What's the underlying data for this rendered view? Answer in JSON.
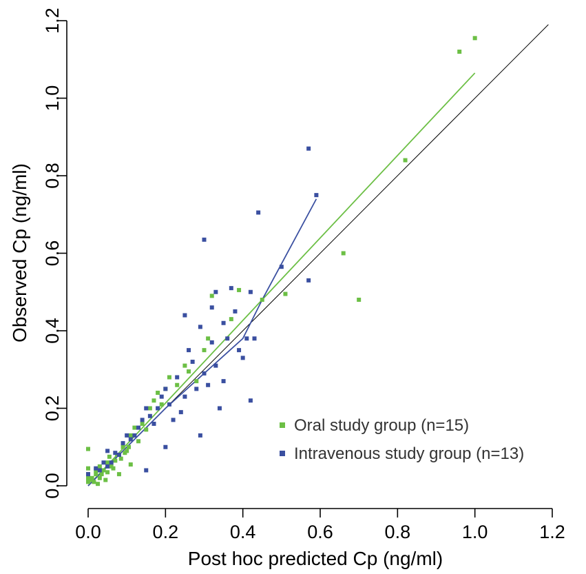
{
  "chart_data": {
    "type": "scatter",
    "xlabel": "Post hoc predicted Cp (ng/ml)",
    "ylabel": "Observed Cp (ng/ml)",
    "xlim": [
      0.0,
      1.2
    ],
    "ylim": [
      0.0,
      1.2
    ],
    "x_ticks": [
      "0.0",
      "0.2",
      "0.4",
      "0.6",
      "0.8",
      "1.0",
      "1.2"
    ],
    "y_ticks": [
      "0.0",
      "0.2",
      "0.4",
      "0.6",
      "0.8",
      "1.0",
      "1.2"
    ],
    "grid": false,
    "legend_position": "bottom-right",
    "identity_line": {
      "x": [
        0.0,
        1.19
      ],
      "y": [
        0.0,
        1.19
      ],
      "color": "#000000"
    },
    "series": [
      {
        "name": "Oral study group (n=15)",
        "color": "#6cbf45",
        "points": [
          [
            0.0,
            0.01
          ],
          [
            0.0,
            0.02
          ],
          [
            0.0,
            0.03
          ],
          [
            0.0,
            0.045
          ],
          [
            0.0,
            0.095
          ],
          [
            0.005,
            0.015
          ],
          [
            0.01,
            0.02
          ],
          [
            0.015,
            0.01
          ],
          [
            0.02,
            0.03
          ],
          [
            0.02,
            0.04
          ],
          [
            0.025,
            0.005
          ],
          [
            0.03,
            0.02
          ],
          [
            0.03,
            0.05
          ],
          [
            0.035,
            0.03
          ],
          [
            0.04,
            0.04
          ],
          [
            0.045,
            0.015
          ],
          [
            0.05,
            0.06
          ],
          [
            0.05,
            0.035
          ],
          [
            0.055,
            0.075
          ],
          [
            0.06,
            0.05
          ],
          [
            0.065,
            0.045
          ],
          [
            0.07,
            0.065
          ],
          [
            0.075,
            0.08
          ],
          [
            0.08,
            0.03
          ],
          [
            0.085,
            0.07
          ],
          [
            0.09,
            0.1
          ],
          [
            0.095,
            0.085
          ],
          [
            0.1,
            0.09
          ],
          [
            0.105,
            0.1
          ],
          [
            0.11,
            0.13
          ],
          [
            0.11,
            0.055
          ],
          [
            0.12,
            0.15
          ],
          [
            0.13,
            0.115
          ],
          [
            0.14,
            0.16
          ],
          [
            0.15,
            0.145
          ],
          [
            0.16,
            0.2
          ],
          [
            0.17,
            0.22
          ],
          [
            0.18,
            0.24
          ],
          [
            0.19,
            0.21
          ],
          [
            0.2,
            0.25
          ],
          [
            0.21,
            0.28
          ],
          [
            0.23,
            0.26
          ],
          [
            0.25,
            0.31
          ],
          [
            0.26,
            0.295
          ],
          [
            0.28,
            0.27
          ],
          [
            0.3,
            0.35
          ],
          [
            0.31,
            0.38
          ],
          [
            0.32,
            0.49
          ],
          [
            0.37,
            0.43
          ],
          [
            0.39,
            0.505
          ],
          [
            0.45,
            0.48
          ],
          [
            0.51,
            0.495
          ],
          [
            0.66,
            0.6
          ],
          [
            0.7,
            0.48
          ],
          [
            0.82,
            0.84
          ],
          [
            0.96,
            1.12
          ],
          [
            1.0,
            1.155
          ]
        ]
      },
      {
        "name": "Intravenous study group (n=13)",
        "color": "#3a4fa0",
        "points": [
          [
            0.0,
            0.03
          ],
          [
            0.02,
            0.045
          ],
          [
            0.03,
            0.04
          ],
          [
            0.04,
            0.06
          ],
          [
            0.05,
            0.09
          ],
          [
            0.05,
            0.05
          ],
          [
            0.06,
            0.06
          ],
          [
            0.07,
            0.085
          ],
          [
            0.08,
            0.08
          ],
          [
            0.09,
            0.11
          ],
          [
            0.1,
            0.13
          ],
          [
            0.11,
            0.12
          ],
          [
            0.12,
            0.13
          ],
          [
            0.13,
            0.15
          ],
          [
            0.14,
            0.17
          ],
          [
            0.15,
            0.2
          ],
          [
            0.15,
            0.04
          ],
          [
            0.16,
            0.18
          ],
          [
            0.17,
            0.16
          ],
          [
            0.18,
            0.2
          ],
          [
            0.19,
            0.23
          ],
          [
            0.2,
            0.1
          ],
          [
            0.2,
            0.25
          ],
          [
            0.21,
            0.21
          ],
          [
            0.22,
            0.17
          ],
          [
            0.23,
            0.28
          ],
          [
            0.24,
            0.19
          ],
          [
            0.25,
            0.23
          ],
          [
            0.25,
            0.44
          ],
          [
            0.26,
            0.35
          ],
          [
            0.27,
            0.32
          ],
          [
            0.28,
            0.25
          ],
          [
            0.29,
            0.41
          ],
          [
            0.29,
            0.13
          ],
          [
            0.3,
            0.635
          ],
          [
            0.3,
            0.29
          ],
          [
            0.31,
            0.26
          ],
          [
            0.32,
            0.37
          ],
          [
            0.32,
            0.46
          ],
          [
            0.33,
            0.5
          ],
          [
            0.33,
            0.31
          ],
          [
            0.34,
            0.2
          ],
          [
            0.35,
            0.42
          ],
          [
            0.35,
            0.27
          ],
          [
            0.36,
            0.38
          ],
          [
            0.37,
            0.51
          ],
          [
            0.38,
            0.45
          ],
          [
            0.39,
            0.35
          ],
          [
            0.4,
            0.33
          ],
          [
            0.41,
            0.38
          ],
          [
            0.42,
            0.5
          ],
          [
            0.42,
            0.22
          ],
          [
            0.43,
            0.38
          ],
          [
            0.44,
            0.705
          ],
          [
            0.5,
            0.565
          ],
          [
            0.57,
            0.87
          ],
          [
            0.57,
            0.53
          ],
          [
            0.59,
            0.75
          ]
        ]
      }
    ],
    "trend_lines": [
      {
        "series": "Oral study group (n=15)",
        "color": "#6cbf45",
        "x": [
          0.0,
          0.45,
          1.0
        ],
        "y": [
          0.0,
          0.48,
          1.065
        ]
      },
      {
        "series": "Intravenous study group (n=13)",
        "color": "#3a4fa0",
        "x": [
          0.0,
          0.2,
          0.4,
          0.45,
          0.59
        ],
        "y": [
          0.0,
          0.2,
          0.38,
          0.48,
          0.74
        ]
      }
    ]
  }
}
